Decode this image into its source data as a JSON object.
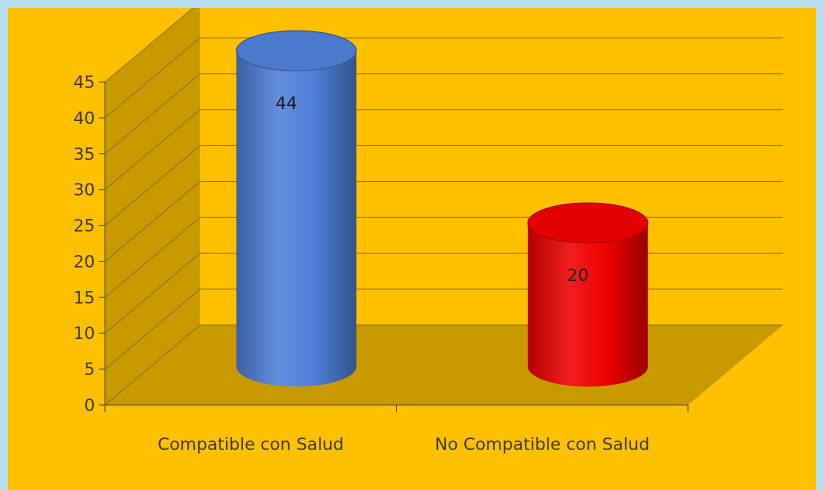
{
  "colors": {
    "background": "#ffc000",
    "frame": "#b7dff0",
    "side_wall": "#c99a00",
    "floor": "#c99a00",
    "gridline": "#8a6a10",
    "axis": "#555555"
  },
  "chart_data": {
    "type": "bar",
    "style": "3d-cylinder",
    "categories": [
      "Compatible con Salud",
      "No Compatible con Salud"
    ],
    "series": [
      {
        "values": [
          44,
          20
        ],
        "colors": [
          "#4f7fd8",
          "#ee0000"
        ]
      }
    ],
    "data_labels": [
      "44",
      "20"
    ],
    "ylim": [
      0,
      45
    ],
    "yticks": [
      0,
      5,
      10,
      15,
      20,
      25,
      30,
      35,
      40,
      45
    ],
    "grid": true,
    "legend": "none",
    "title": "",
    "xlabel": "",
    "ylabel": ""
  }
}
